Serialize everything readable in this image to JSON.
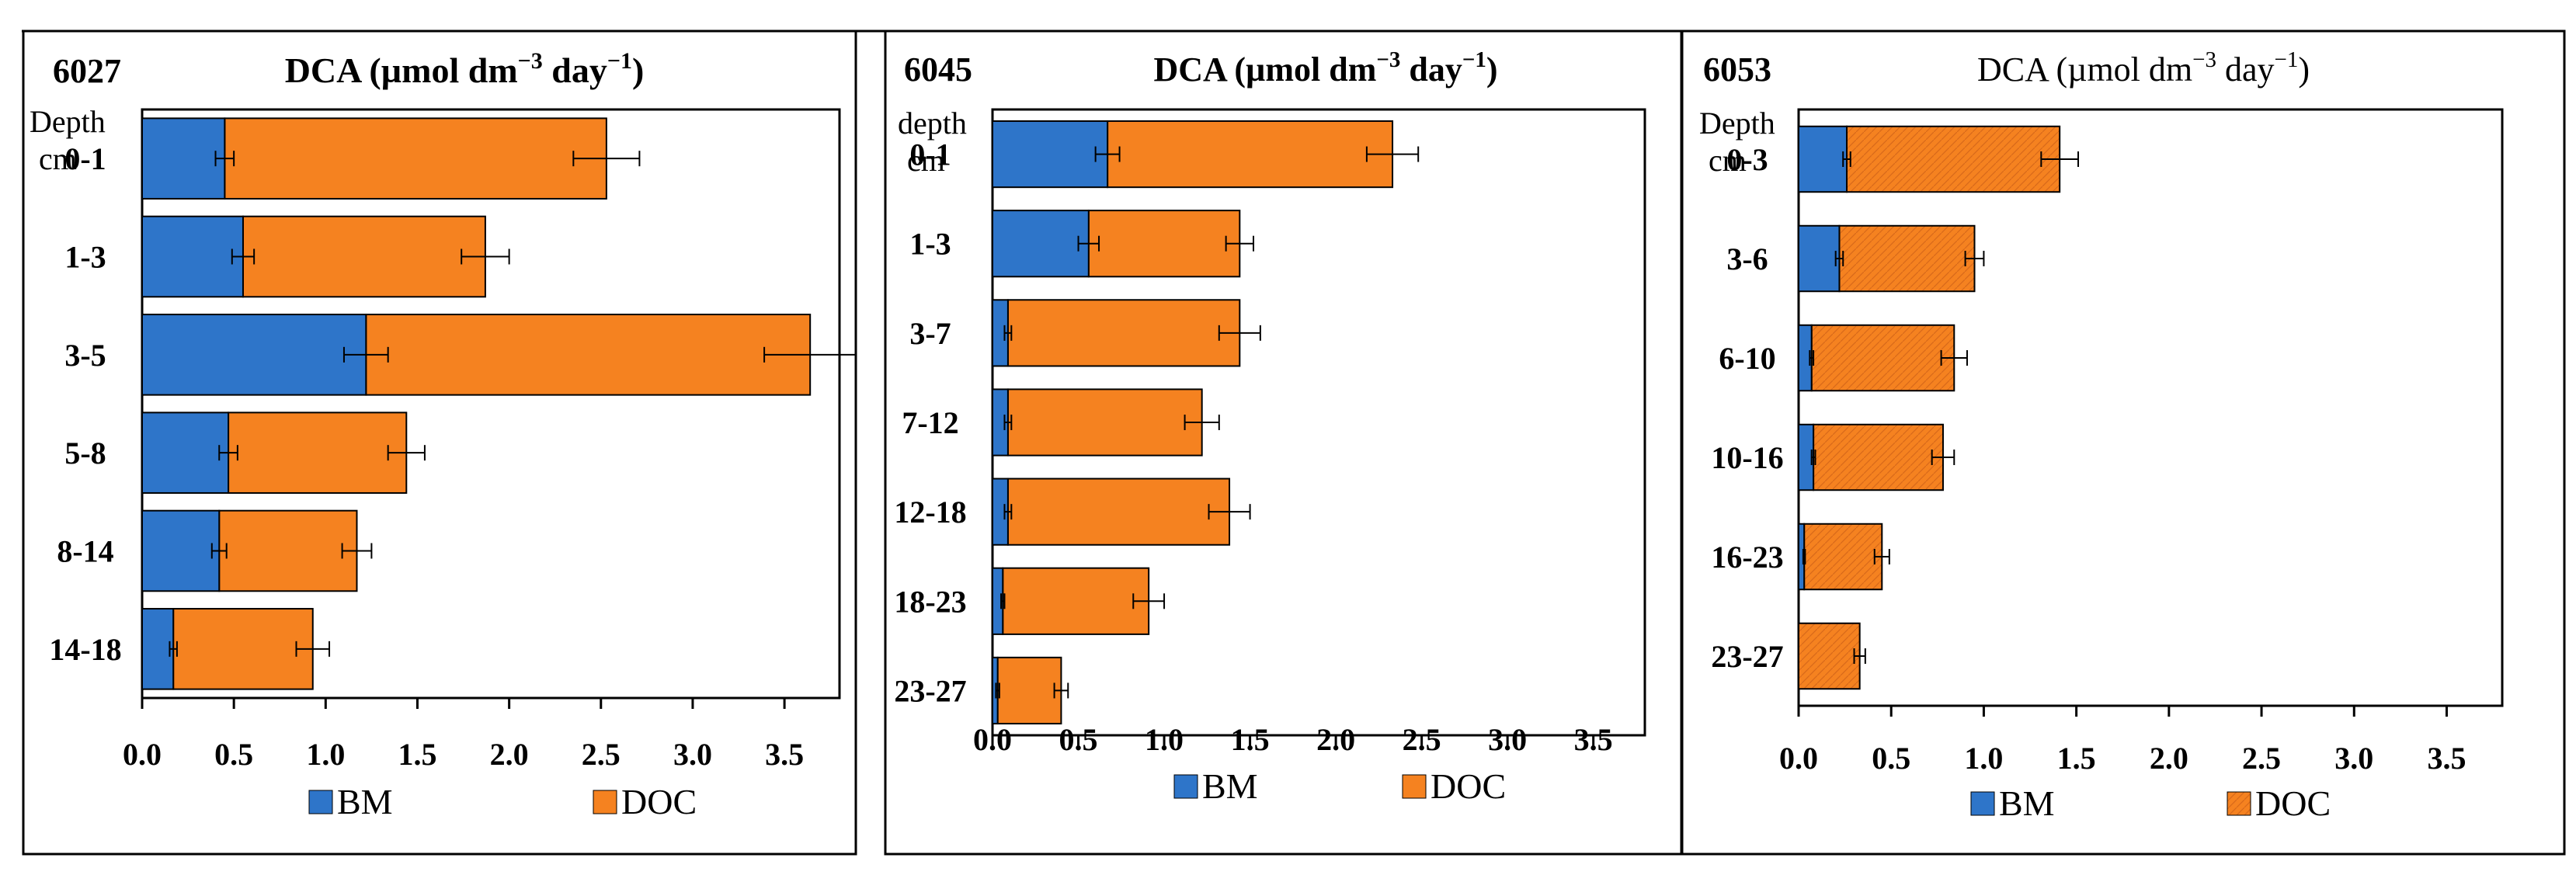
{
  "colors": {
    "bm": "#2e75c9",
    "doc": "#f58220",
    "axis": "#000000",
    "error": "#000000"
  },
  "legend": {
    "bm_label": "BM",
    "doc_label": "DOC"
  },
  "chart_data": [
    {
      "type": "bar",
      "orientation": "horizontal",
      "stacked": true,
      "site": "6027",
      "title": "DCA (µmol dm−3 day−1)",
      "title_parts": {
        "main": "DCA  (µmol dm",
        "exp1": "−3",
        "mid": " day",
        "exp2": "−1",
        "end": ")"
      },
      "ylabel": [
        "Depth",
        "cm"
      ],
      "xlim": [
        0,
        3.8
      ],
      "xticks": [
        "0.0",
        "0.5",
        "1.0",
        "1.5",
        "2.0",
        "2.5",
        "3.0",
        "3.5"
      ],
      "categories": [
        "0-1",
        "1-3",
        "3-5",
        "5-8",
        "8-14",
        "14-18"
      ],
      "series": [
        {
          "name": "BM",
          "values": [
            0.45,
            0.55,
            1.22,
            0.47,
            0.42,
            0.17
          ],
          "errors": [
            0.05,
            0.06,
            0.12,
            0.05,
            0.04,
            0.02
          ]
        },
        {
          "name": "DOC",
          "values": [
            2.08,
            1.32,
            2.42,
            0.97,
            0.75,
            0.76
          ],
          "errors": [
            0.18,
            0.13,
            0.25,
            0.1,
            0.08,
            0.09
          ]
        }
      ]
    },
    {
      "type": "bar",
      "orientation": "horizontal",
      "stacked": true,
      "site": "6045",
      "title": "DCA (µmol dm−3 day−1)",
      "title_parts": {
        "main": "DCA (µmol dm",
        "exp1": "−3",
        "mid": " day",
        "exp2": "−1",
        "end": ")"
      },
      "ylabel": [
        "depth",
        "cm"
      ],
      "xlim": [
        0,
        3.8
      ],
      "xticks": [
        "0.0",
        "0.5",
        "1.0",
        "1.5",
        "2.0",
        "2.5",
        "3.0",
        "3.5"
      ],
      "categories": [
        "0-1",
        "1-3",
        "3-7",
        "7-12",
        "12-18",
        "18-23",
        "23-27"
      ],
      "series": [
        {
          "name": "BM",
          "values": [
            0.67,
            0.56,
            0.09,
            0.09,
            0.09,
            0.06,
            0.03
          ],
          "errors": [
            0.07,
            0.06,
            0.02,
            0.02,
            0.02,
            0.01,
            0.01
          ]
        },
        {
          "name": "DOC",
          "values": [
            1.66,
            0.88,
            1.35,
            1.13,
            1.29,
            0.85,
            0.37
          ],
          "errors": [
            0.15,
            0.08,
            0.12,
            0.1,
            0.12,
            0.09,
            0.04
          ]
        }
      ]
    },
    {
      "type": "bar",
      "orientation": "horizontal",
      "stacked": true,
      "site": "6053",
      "title": "DCA (µmol dm−3 day−1)",
      "title_parts": {
        "main": "DCA  (µmol dm",
        "exp1": "−3",
        "mid": "  day",
        "exp2": "−1",
        "end": ")"
      },
      "ylabel": [
        "Depth",
        "cm"
      ],
      "xlim": [
        0,
        3.8
      ],
      "xticks": [
        "0.0",
        "0.5",
        "1.0",
        "1.5",
        "2.0",
        "2.5",
        "3.0",
        "3.5"
      ],
      "categories": [
        "0-3",
        "3-6",
        "6-10",
        "10-16",
        "16-23",
        "23-27"
      ],
      "series": [
        {
          "name": "BM",
          "values": [
            0.26,
            0.22,
            0.07,
            0.08,
            0.03,
            0.0
          ],
          "errors": [
            0.02,
            0.02,
            0.01,
            0.01,
            0.005,
            0.0
          ]
        },
        {
          "name": "DOC",
          "values": [
            1.15,
            0.73,
            0.77,
            0.7,
            0.42,
            0.33
          ],
          "errors": [
            0.1,
            0.05,
            0.07,
            0.06,
            0.04,
            0.03
          ]
        }
      ]
    }
  ]
}
